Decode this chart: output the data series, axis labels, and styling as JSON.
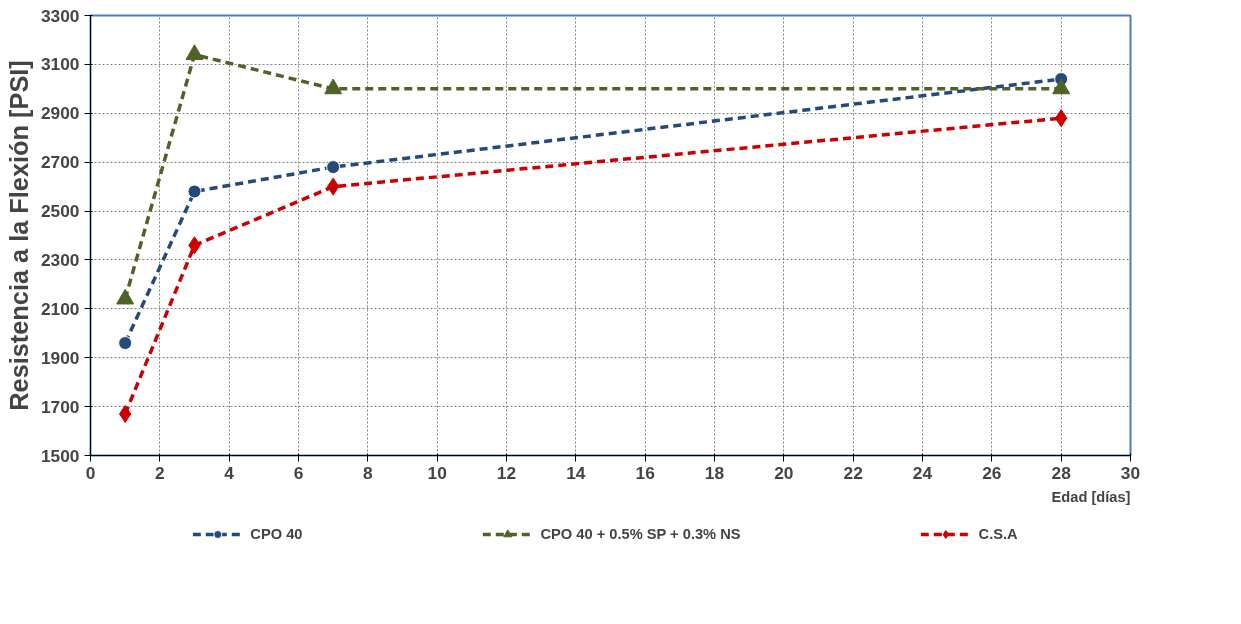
{
  "chart_data": {
    "type": "line",
    "xlabel": "Edad [días]",
    "ylabel": "Resistencia a la Flexión [PSI]",
    "xlim": [
      0,
      30
    ],
    "xticks": [
      0,
      2,
      4,
      6,
      8,
      10,
      12,
      14,
      16,
      18,
      20,
      22,
      24,
      26,
      28,
      30
    ],
    "ylim": [
      1500,
      3300
    ],
    "yticks": [
      1500,
      1700,
      1900,
      2100,
      2300,
      2500,
      2700,
      2900,
      3100,
      3300
    ],
    "grid": true,
    "legend": "bottom",
    "line_style": "dashed",
    "series": [
      {
        "name": "CPO 40",
        "color": "#244a7c",
        "marker": "circle",
        "x": [
          1,
          3,
          7,
          28
        ],
        "values": [
          1960,
          2580,
          2680,
          3040
        ]
      },
      {
        "name": "CPO 40 + 0.5% SP + 0.3% NS",
        "color": "#4f6228",
        "marker": "triangle",
        "x": [
          1,
          3,
          7,
          28
        ],
        "values": [
          2140,
          3140,
          3000,
          3000
        ]
      },
      {
        "name": "C.S.A",
        "color": "#cc0000",
        "marker": "diamond",
        "x": [
          1,
          3,
          7,
          28
        ],
        "values": [
          1670,
          2360,
          2600,
          2880
        ]
      }
    ]
  }
}
